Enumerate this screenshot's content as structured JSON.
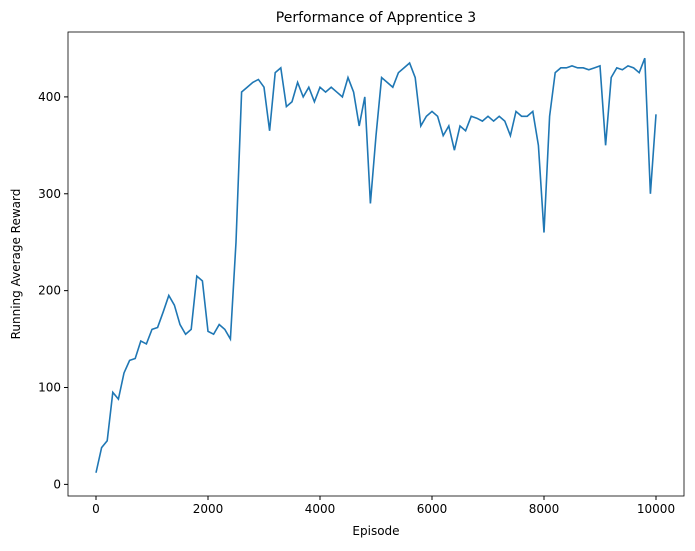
{
  "chart_data": {
    "type": "line",
    "title": "Performance of Apprentice 3",
    "xlabel": "Episode",
    "ylabel": "Running Average Reward",
    "x": [
      0,
      100,
      200,
      300,
      400,
      500,
      600,
      700,
      800,
      900,
      1000,
      1100,
      1200,
      1300,
      1400,
      1500,
      1600,
      1700,
      1800,
      1900,
      2000,
      2100,
      2200,
      2300,
      2400,
      2500,
      2600,
      2700,
      2800,
      2900,
      3000,
      3100,
      3200,
      3300,
      3400,
      3500,
      3600,
      3700,
      3800,
      3900,
      4000,
      4100,
      4200,
      4300,
      4400,
      4500,
      4600,
      4700,
      4800,
      4900,
      5000,
      5100,
      5200,
      5300,
      5400,
      5500,
      5600,
      5700,
      5800,
      5900,
      6000,
      6100,
      6200,
      6300,
      6400,
      6500,
      6600,
      6700,
      6800,
      6900,
      7000,
      7100,
      7200,
      7300,
      7400,
      7500,
      7600,
      7700,
      7800,
      7900,
      8000,
      8100,
      8200,
      8300,
      8400,
      8500,
      8600,
      8700,
      8800,
      8900,
      9000,
      9100,
      9200,
      9300,
      9400,
      9500,
      9600,
      9700,
      9800,
      9900,
      10000
    ],
    "series": [
      {
        "name": "Running Average Reward",
        "color": "#1f77b4",
        "values": [
          12,
          38,
          45,
          95,
          88,
          115,
          128,
          130,
          148,
          145,
          160,
          162,
          178,
          195,
          185,
          165,
          155,
          160,
          215,
          210,
          158,
          155,
          165,
          160,
          150,
          250,
          405,
          410,
          415,
          418,
          410,
          365,
          425,
          430,
          390,
          395,
          415,
          400,
          410,
          395,
          410,
          405,
          410,
          405,
          400,
          420,
          405,
          370,
          400,
          290,
          360,
          420,
          415,
          410,
          425,
          430,
          435,
          420,
          370,
          380,
          385,
          380,
          360,
          370,
          345,
          370,
          365,
          380,
          378,
          375,
          380,
          375,
          380,
          375,
          360,
          385,
          380,
          380,
          385,
          350,
          260,
          380,
          425,
          430,
          430,
          432,
          430,
          430,
          428,
          430,
          432,
          350,
          420,
          430,
          428,
          432,
          430,
          425,
          440,
          300,
          382
        ]
      }
    ],
    "xlim": [
      -500,
      10500
    ],
    "ylim": [
      -12,
      467
    ],
    "xticks": [
      0,
      2000,
      4000,
      6000,
      8000,
      10000
    ],
    "yticks": [
      0,
      100,
      200,
      300,
      400
    ]
  }
}
